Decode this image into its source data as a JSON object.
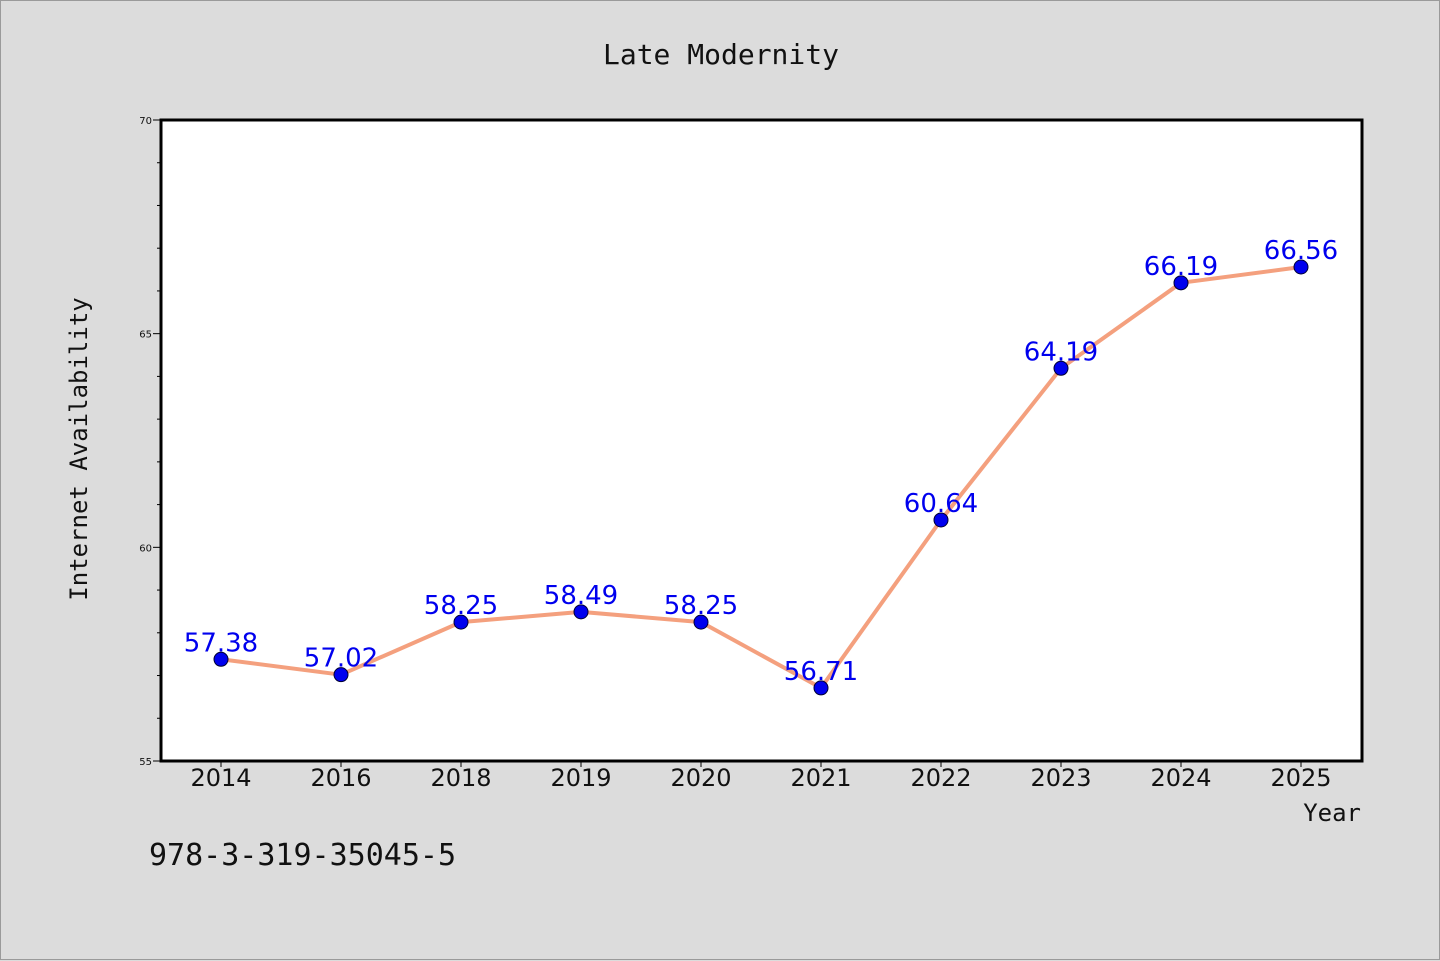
{
  "chart_data": {
    "type": "line",
    "title": "Late Modernity",
    "xlabel": "Year",
    "ylabel": "Internet Availability",
    "categories": [
      "2014",
      "2016",
      "2018",
      "2019",
      "2020",
      "2021",
      "2022",
      "2023",
      "2024",
      "2025"
    ],
    "series": [
      {
        "values": [
          57.38,
          57.02,
          58.25,
          58.49,
          58.25,
          56.71,
          60.64,
          64.19,
          66.19,
          66.56
        ],
        "labels": [
          "57.38",
          "57.02",
          "58.25",
          "58.49",
          "58.25",
          "56.71",
          "60.64",
          "64.19",
          "66.19",
          "66.56"
        ]
      }
    ],
    "ylim": [
      55,
      70
    ],
    "yticks": [
      "55",
      "60",
      "65",
      "70"
    ],
    "grid": false,
    "colors": {
      "line": "#f4a07e",
      "marker": "#0000ee",
      "data_label": "#0000ee",
      "background": "#dcdcdc",
      "plot_background": "#ffffff"
    }
  },
  "footer": {
    "isbn": "978-3-319-35045-5"
  }
}
